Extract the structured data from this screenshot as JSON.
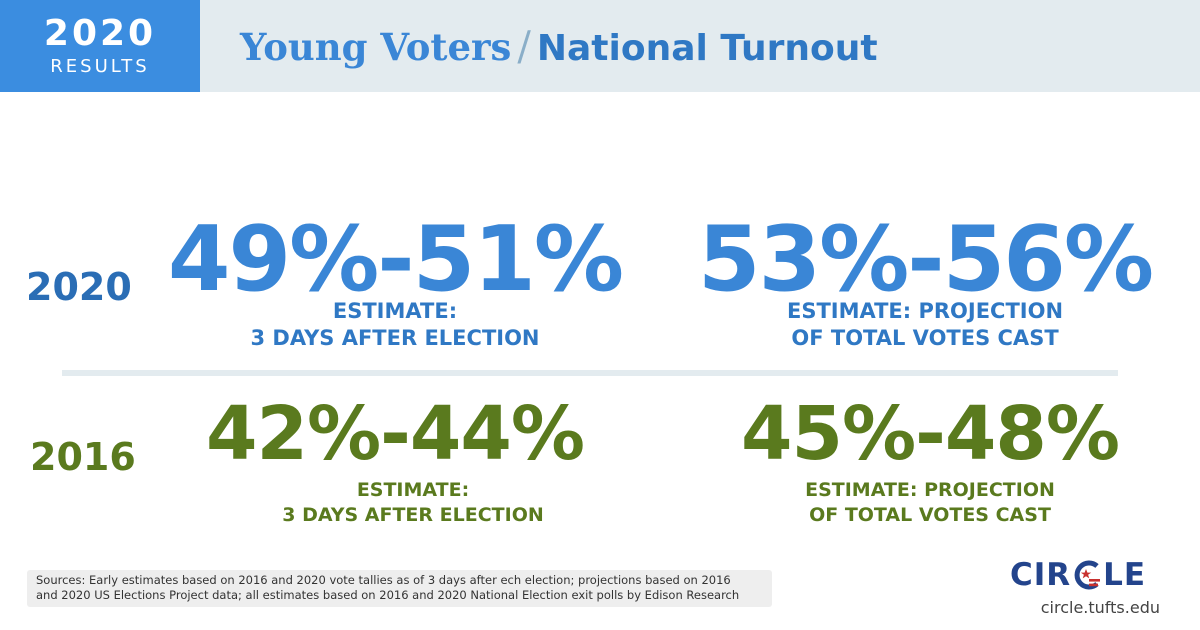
{
  "header": {
    "badge_year": "2020",
    "badge_label": "RESULTS",
    "title_part1": "Young Voters",
    "title_separator": "/",
    "title_part2": "National Turnout"
  },
  "rows": [
    {
      "year": "2020",
      "color": "#3a86d6",
      "stats": [
        {
          "value": "49%-51%",
          "label_line1": "ESTIMATE:",
          "label_line2": "3 DAYS AFTER ELECTION"
        },
        {
          "value": "53%-56%",
          "label_line1": "ESTIMATE: PROJECTION",
          "label_line2": "OF TOTAL VOTES CAST"
        }
      ]
    },
    {
      "year": "2016",
      "color": "#5a7a1e",
      "stats": [
        {
          "value": "42%-44%",
          "label_line1": "ESTIMATE:",
          "label_line2": "3 DAYS AFTER ELECTION"
        },
        {
          "value": "45%-48%",
          "label_line1": "ESTIMATE: PROJECTION",
          "label_line2": "OF TOTAL VOTES CAST"
        }
      ]
    }
  ],
  "footer": {
    "sources_line1": "Sources: Early estimates based on 2016 and 2020 vote tallies as of 3 days after ech election; projections based on 2016",
    "sources_line2": "and 2020 US Elections Project data; all estimates based on 2016 and 2020 National Election exit polls by Edison Research",
    "logo_text_left": "CIR",
    "logo_text_right": "LE",
    "logo_icon": "flag-c-icon",
    "url": "circle.tufts.edu"
  },
  "colors": {
    "accent_blue": "#3b8de0",
    "title_blue": "#2f78c4",
    "green": "#5a7a1e",
    "navy": "#23448c",
    "red": "#c8312f",
    "header_bg": "#e3ebef"
  }
}
